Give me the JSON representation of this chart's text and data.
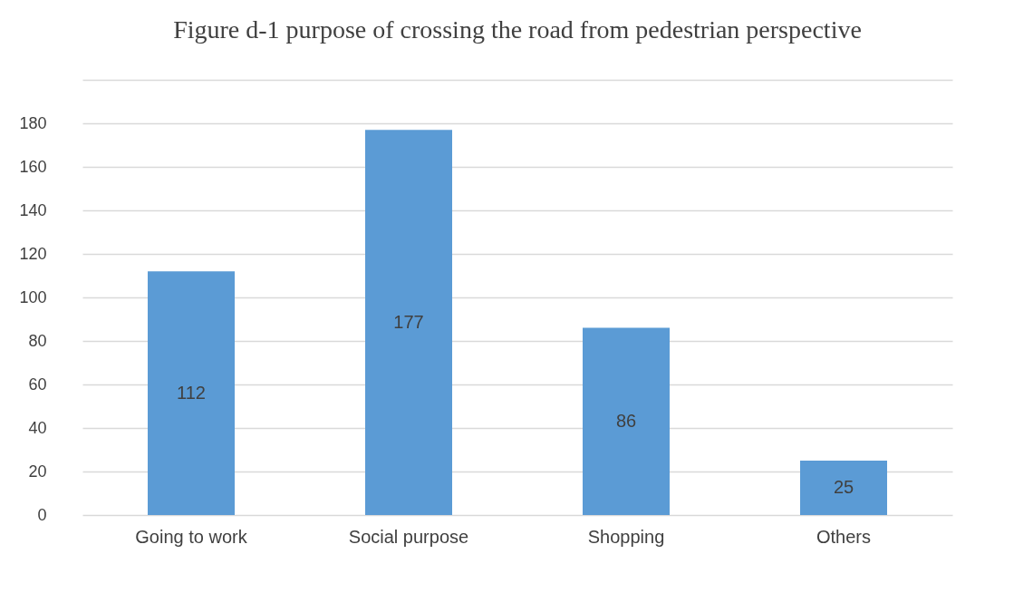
{
  "chart_data": {
    "type": "bar",
    "title": "Figure d-1 purpose of crossing the road from pedestrian perspective",
    "categories": [
      "Going to work",
      "Social purpose",
      "Shopping",
      "Others"
    ],
    "values": [
      112,
      177,
      86,
      25
    ],
    "color": "#5b9bd5",
    "ylim": [
      0,
      200
    ],
    "yticks": [
      0,
      20,
      40,
      60,
      80,
      100,
      120,
      140,
      160,
      180,
      {
        "value": 200,
        "label": null
      }
    ],
    "grid": "y",
    "data_labels": true
  }
}
